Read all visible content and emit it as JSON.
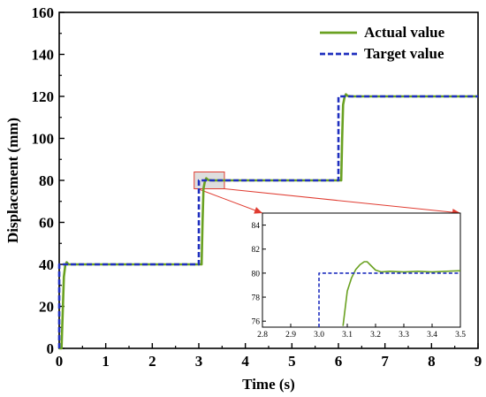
{
  "chart_data": [
    {
      "type": "line",
      "xlabel": "Time (s)",
      "ylabel": "Displacement (mm)",
      "xlim": [
        0,
        9
      ],
      "ylim": [
        0,
        160
      ],
      "xticks": [
        "0",
        "1",
        "2",
        "3",
        "4",
        "5",
        "6",
        "7",
        "8",
        "9"
      ],
      "yticks": [
        "0",
        "20",
        "40",
        "60",
        "80",
        "100",
        "120",
        "140",
        "160"
      ],
      "grid": false,
      "legend": "top-right",
      "series": [
        {
          "name": "Actual value",
          "color": "#6aa121",
          "style": "solid",
          "x": [
            0,
            0.05,
            0.08,
            0.1,
            0.13,
            0.16,
            0.2,
            0.3,
            3.0,
            3.03,
            3.06,
            3.08,
            3.1,
            3.13,
            3.16,
            3.2,
            3.3,
            6.0,
            6.03,
            6.06,
            6.08,
            6.1,
            6.13,
            6.16,
            6.2,
            6.3,
            9.0
          ],
          "y": [
            0,
            0,
            20,
            34,
            39.5,
            41,
            40,
            40,
            40,
            40,
            40,
            60,
            76,
            79.5,
            81,
            80.2,
            80,
            80,
            80,
            80,
            100,
            116,
            119.5,
            121,
            120.2,
            120,
            120
          ]
        },
        {
          "name": "Target value",
          "color": "#1f2fbf",
          "style": "dashed",
          "x": [
            0,
            0.001,
            3.0,
            3.001,
            6.0,
            6.001,
            9.0
          ],
          "y": [
            0,
            40,
            40,
            80,
            80,
            120,
            120
          ]
        }
      ]
    },
    {
      "type": "line",
      "xlim": [
        2.8,
        3.5
      ],
      "ylim": [
        75.5,
        85
      ],
      "xticks": [
        "2.8",
        "2.9",
        "3.0",
        "3.1",
        "3.2",
        "3.3",
        "3.4",
        "3.5"
      ],
      "yticks": [
        "76",
        "78",
        "80",
        "82",
        "84"
      ],
      "zoom_region": {
        "x": [
          2.9,
          3.55
        ],
        "y": [
          76,
          84
        ]
      },
      "series": [
        {
          "name": "Actual value",
          "color": "#6aa121",
          "style": "solid",
          "x": [
            3.085,
            3.1,
            3.115,
            3.13,
            3.145,
            3.16,
            3.17,
            3.185,
            3.2,
            3.22,
            3.25,
            3.3,
            3.35,
            3.4,
            3.45,
            3.5
          ],
          "y": [
            75.6,
            78.5,
            79.6,
            80.3,
            80.7,
            80.95,
            80.95,
            80.6,
            80.25,
            80.1,
            80.15,
            80.1,
            80.15,
            80.1,
            80.15,
            80.2
          ]
        },
        {
          "name": "Target value",
          "color": "#1f2fbf",
          "style": "dashed",
          "x": [
            3.0,
            3.0,
            3.5
          ],
          "y": [
            75.5,
            80,
            80
          ]
        }
      ]
    }
  ]
}
